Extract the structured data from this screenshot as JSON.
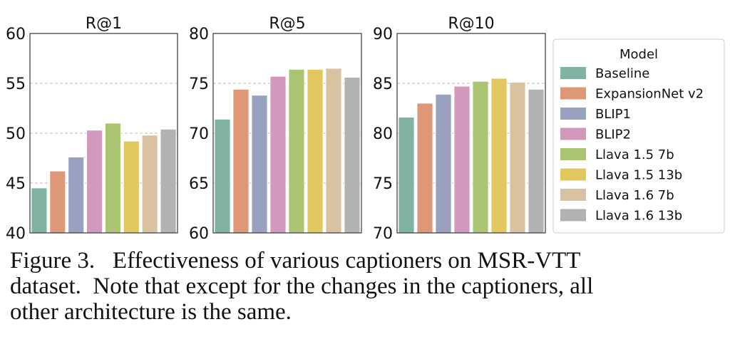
{
  "chart_data": [
    {
      "type": "bar",
      "title": "R@1",
      "ylim": [
        40,
        60
      ],
      "yticks": [
        40,
        45,
        50,
        55,
        60
      ],
      "categories": [
        "Baseline",
        "ExpansionNet v2",
        "BLIP1",
        "BLIP2",
        "Llava 1.5 7b",
        "Llava 1.5 13b",
        "Llava 1.6 7b",
        "Llava 1.6 13b"
      ],
      "values": [
        44.5,
        46.2,
        47.6,
        50.3,
        51.0,
        49.2,
        49.8,
        50.4
      ],
      "grid": "y-dashed"
    },
    {
      "type": "bar",
      "title": "R@5",
      "ylim": [
        60,
        80
      ],
      "yticks": [
        60,
        65,
        70,
        75,
        80
      ],
      "categories": [
        "Baseline",
        "ExpansionNet v2",
        "BLIP1",
        "BLIP2",
        "Llava 1.5 7b",
        "Llava 1.5 13b",
        "Llava 1.6 7b",
        "Llava 1.6 13b"
      ],
      "values": [
        71.4,
        74.4,
        73.8,
        75.7,
        76.4,
        76.4,
        76.5,
        75.6
      ],
      "grid": "y-dashed"
    },
    {
      "type": "bar",
      "title": "R@10",
      "ylim": [
        70,
        90
      ],
      "yticks": [
        70,
        75,
        80,
        85,
        90
      ],
      "categories": [
        "Baseline",
        "ExpansionNet v2",
        "BLIP1",
        "BLIP2",
        "Llava 1.5 7b",
        "Llava 1.5 13b",
        "Llava 1.6 7b",
        "Llava 1.6 13b"
      ],
      "values": [
        81.6,
        83.0,
        83.9,
        84.7,
        85.2,
        85.5,
        85.1,
        84.4
      ],
      "grid": "y-dashed"
    }
  ],
  "legend": {
    "title": "Model",
    "placement": "right",
    "items": [
      "Baseline",
      "ExpansionNet v2",
      "BLIP1",
      "BLIP2",
      "Llava 1.5 7b",
      "Llava 1.5 13b",
      "Llava 1.6 7b",
      "Llava 1.6 13b"
    ]
  },
  "colors": [
    "#80b3a1",
    "#de9878",
    "#98a2c0",
    "#d399bd",
    "#aac673",
    "#e0c85e",
    "#d9c2a0",
    "#b2b2b2"
  ],
  "caption": {
    "lines": [
      "Figure 3.   Effectiveness of various captioners on MSR-VTT",
      "dataset.  Note that except for the changes in the captioners, all",
      "other architecture is the same."
    ]
  }
}
